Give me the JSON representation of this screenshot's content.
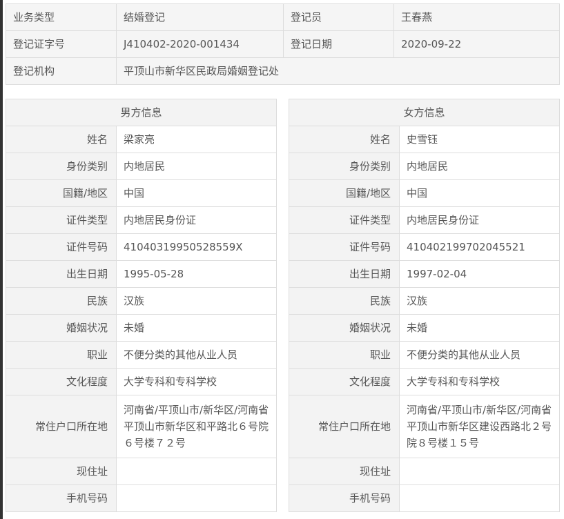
{
  "registration": {
    "business_type_label": "业务类型",
    "business_type": "结婚登记",
    "registrar_label": "登记员",
    "registrar": "王春燕",
    "cert_no_label": "登记证字号",
    "cert_no": "J410402-2020-001434",
    "date_label": "登记日期",
    "date": "2020-09-22",
    "office_label": "登记机构",
    "office": "平顶山市新华区民政局婚姻登记处"
  },
  "labels": [
    "姓名",
    "身份类别",
    "国籍/地区",
    "证件类型",
    "证件号码",
    "出生日期",
    "民族",
    "婚姻状况",
    "职业",
    "文化程度",
    "常住户口所在地",
    "现住址",
    "手机号码"
  ],
  "male": {
    "title": "男方信息",
    "values": [
      "梁家亮",
      "内地居民",
      "中国",
      "内地居民身份证",
      "41040319950528559X",
      "1995-05-28",
      "汉族",
      "未婚",
      "不便分类的其他从业人员",
      "大学专科和专科学校",
      "河南省/平顶山市/新华区/河南省平顶山市新华区和平路北６号院６号楼７２号",
      "",
      ""
    ]
  },
  "female": {
    "title": "女方信息",
    "values": [
      "史雪钰",
      "内地居民",
      "中国",
      "内地居民身份证",
      "410402199702045521",
      "1997-02-04",
      "汉族",
      "未婚",
      "不便分类的其他从业人员",
      "大学专科和专科学校",
      "河南省/平顶山市/新华区/河南省平顶山市新华区建设西路北２号院８号楼１５号",
      "",
      ""
    ]
  }
}
